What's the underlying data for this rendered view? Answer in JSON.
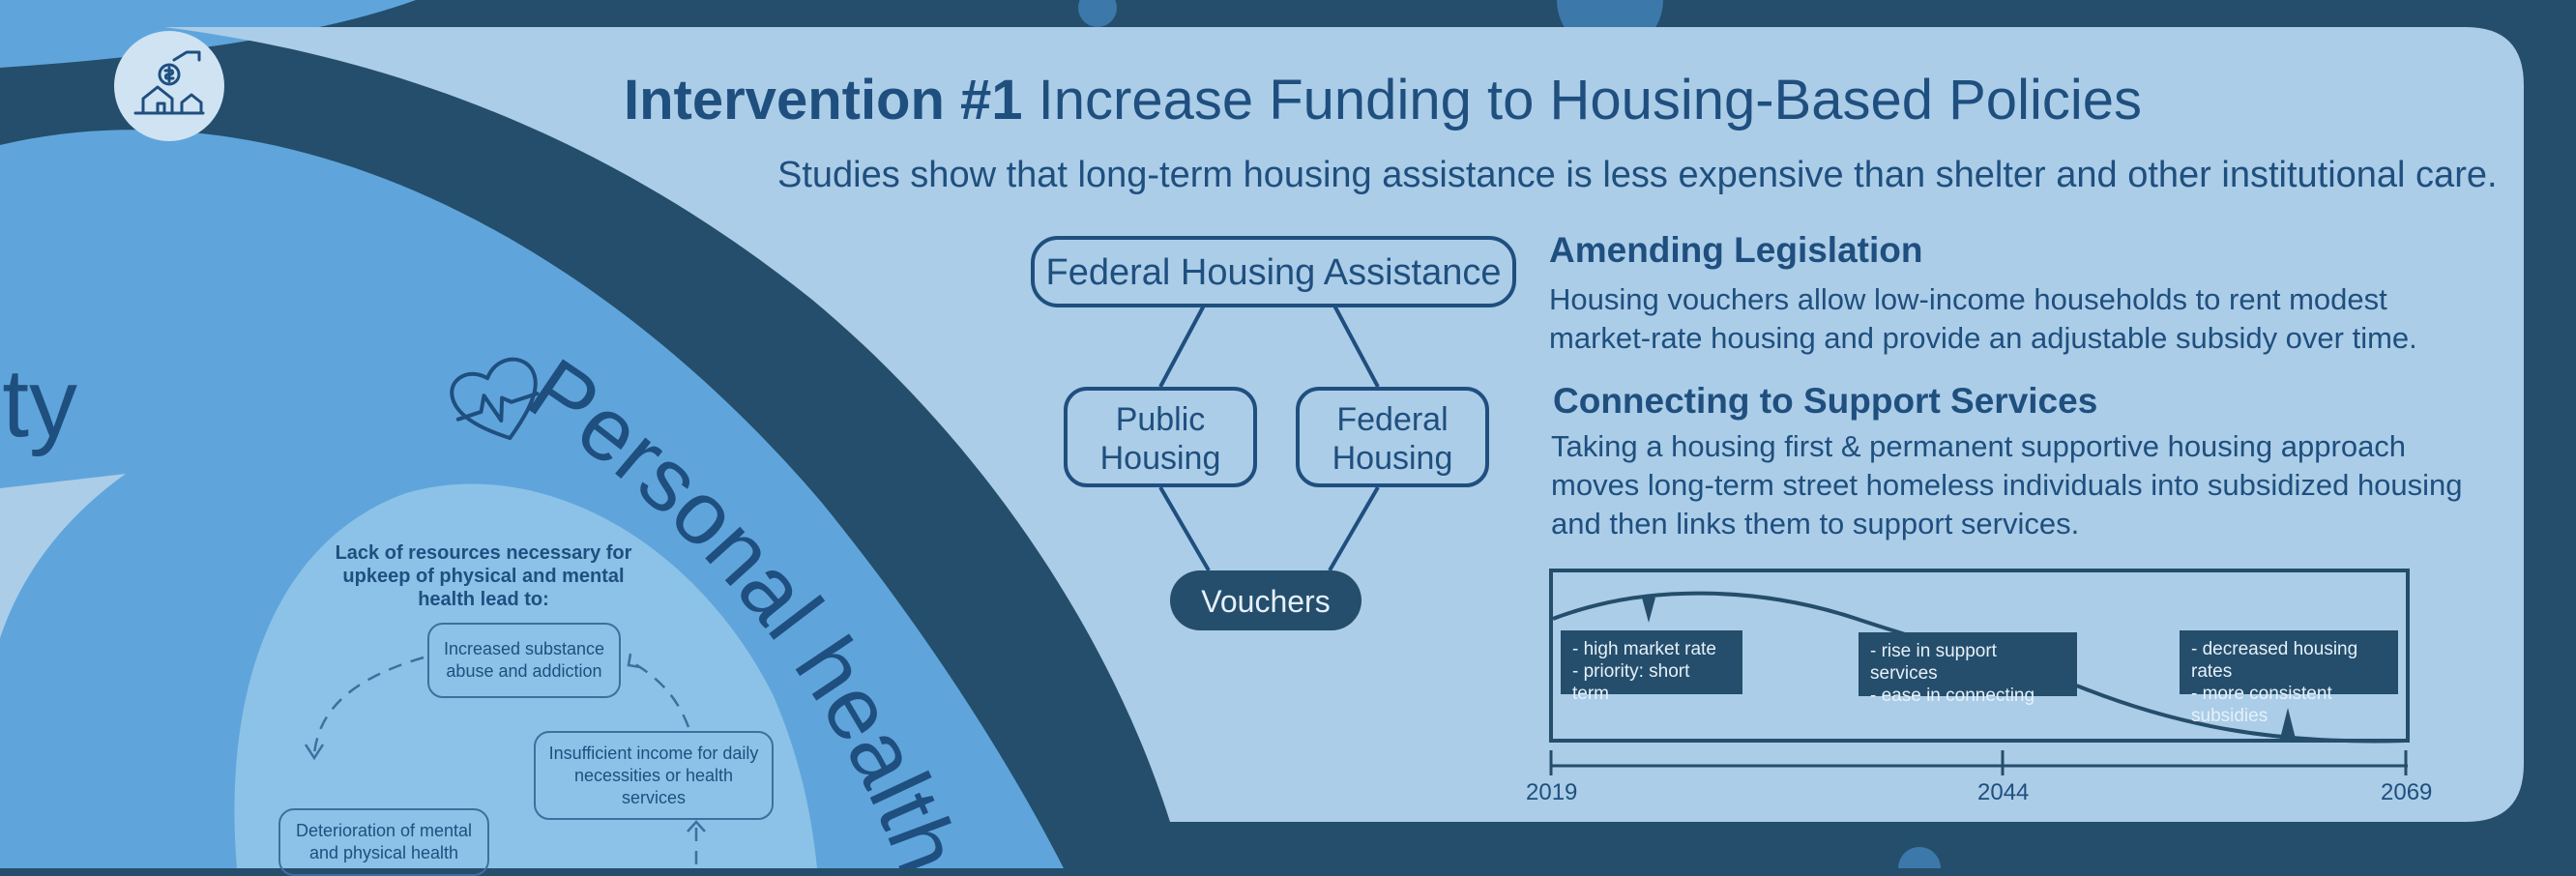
{
  "header": {
    "title_bold": "Intervention #1",
    "title_rest": "Increase Funding to Housing-Based Policies",
    "subtitle": "Studies show that long-term housing assistance is less expensive than shelter and other institutional care."
  },
  "icons": {
    "funding": "hand-dollar-house-icon",
    "health": "heart-pulse-icon"
  },
  "left_panel": {
    "partial_word": "ity",
    "arc_label": "Personal health",
    "cycle_heading": "Lack of resources necessary for upkeep of physical and mental health lead to:",
    "cycle_nodes": [
      "Increased substance abuse and addiction",
      "Insufficient income for daily necessities or health services",
      "Deterioration of mental and physical health"
    ]
  },
  "hierarchy": {
    "root": "Federal Housing Assistance",
    "left_line1": "Public",
    "left_line2": "Housing",
    "right_line1": "Federal",
    "right_line2": "Housing",
    "leaf": "Vouchers"
  },
  "sections": [
    {
      "heading": "Amending Legislation",
      "body": "Housing vouchers allow low-income households to rent modest market-rate housing and provide an adjustable subsidy over time."
    },
    {
      "heading": "Connecting to Support Services",
      "body": "Taking a housing first & permanent supportive housing approach moves long-term street homeless individuals into subsidized housing and then links them to support services."
    }
  ],
  "timeline": {
    "labels": [
      [
        "- high market rate",
        "- priority: short term"
      ],
      [
        "- rise in support services",
        "- ease in connecting"
      ],
      [
        "- decreased housing rates",
        "- more consistent subsidies"
      ]
    ],
    "ticks": [
      "2019",
      "2044",
      "2069"
    ]
  },
  "colors": {
    "dark_navy": "#244e6b",
    "panel_light": "#abcde7",
    "mid_blue": "#5fa5dc",
    "inner_light": "#8cc2e7",
    "text_blue": "#1f4f7f",
    "pill": "#244e6b"
  }
}
